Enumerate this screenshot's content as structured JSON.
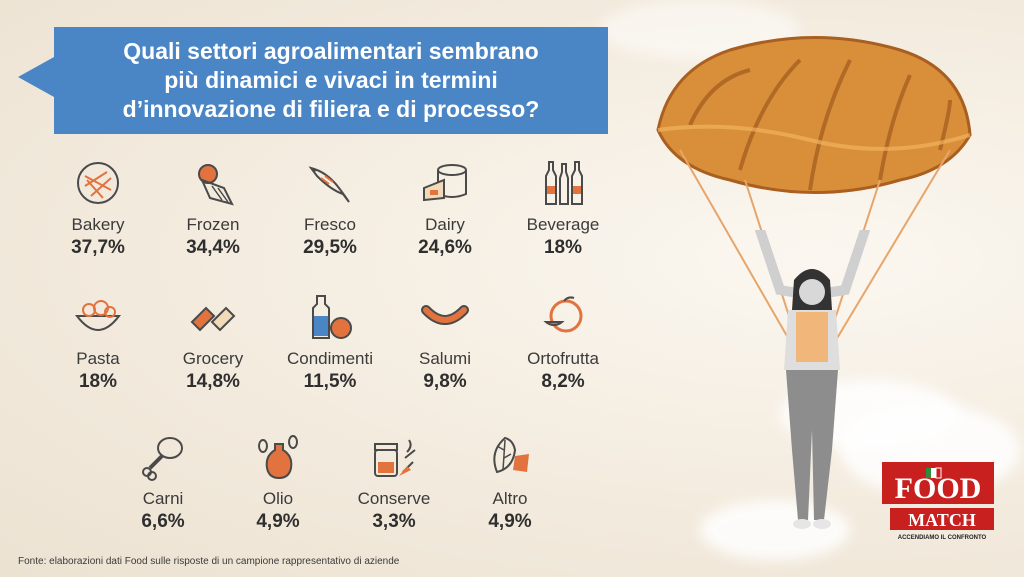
{
  "question": "Quali settori agroalimentari sembrano\npiù dinamici e vivaci in termini\nd’innovazione di filiera e di processo?",
  "source": "Fonte: elaborazioni dati Food sulle risposte di un campione rappresentativo di aziende",
  "colors": {
    "accent": "#4a86c5",
    "icon_stroke": "#4a4a4a",
    "icon_fill": "#e2733f"
  },
  "sectors": [
    {
      "label": "Bakery",
      "value": "37,7%",
      "icon": "bread-icon"
    },
    {
      "label": "Frozen",
      "value": "34,4%",
      "icon": "ice-cream-icon"
    },
    {
      "label": "Fresco",
      "value": "29,5%",
      "icon": "fish-icon"
    },
    {
      "label": "Dairy",
      "value": "24,6%",
      "icon": "cheese-icon"
    },
    {
      "label": "Beverage",
      "value": "18%",
      "icon": "bottles-icon"
    },
    {
      "label": "Pasta",
      "value": "18%",
      "icon": "pasta-bowl-icon"
    },
    {
      "label": "Grocery",
      "value": "14,8%",
      "icon": "snack-bars-icon"
    },
    {
      "label": "Condimenti",
      "value": "11,5%",
      "icon": "condiment-icon"
    },
    {
      "label": "Salumi",
      "value": "9,8%",
      "icon": "sausage-icon"
    },
    {
      "label": "Ortofrutta",
      "value": "8,2%",
      "icon": "fruit-icon"
    },
    {
      "label": "Carni",
      "value": "6,6%",
      "icon": "drumstick-icon"
    },
    {
      "label": "Olio",
      "value": "4,9%",
      "icon": "olive-oil-icon"
    },
    {
      "label": "Conserve",
      "value": "3,3%",
      "icon": "jar-icon"
    },
    {
      "label": "Altro",
      "value": "4,9%",
      "icon": "leaf-icon"
    }
  ],
  "logo": {
    "line1": "FOOD",
    "line2": "MATCH",
    "tagline": "ACCENDIAMO IL CONFRONTO"
  }
}
